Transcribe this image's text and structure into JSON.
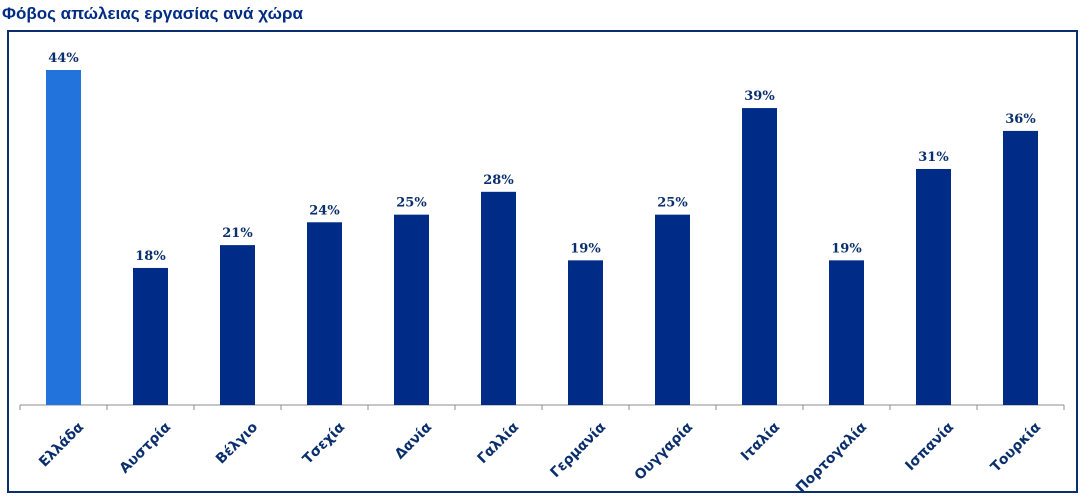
{
  "chart_data": {
    "type": "bar",
    "title": "Φόβος απώλειας εργασίας ανά χώρα",
    "categories": [
      "Ελλάδα",
      "Αυστρία",
      "Βέλγιο",
      "Τσεχία",
      "Δανία",
      "Γαλλία",
      "Γερμανία",
      "Ουγγαρία",
      "Ιταλία",
      "Πορτογαλία",
      "Ισπανία",
      "Τουρκία"
    ],
    "values": [
      44,
      18,
      21,
      24,
      25,
      28,
      19,
      25,
      39,
      19,
      31,
      36
    ],
    "value_labels": [
      "44%",
      "18%",
      "21%",
      "24%",
      "25%",
      "28%",
      "19%",
      "25%",
      "39%",
      "19%",
      "31%",
      "36%"
    ],
    "unit": "%",
    "ylim": [
      0,
      44
    ],
    "grid": false,
    "legend": "none",
    "colors": {
      "highlight": "#2373dc",
      "bar": "#002c88",
      "text": "#0a2f6c",
      "axis": "#8c8c8c",
      "frame": "#0a2f6c"
    },
    "highlight_index": 0
  }
}
